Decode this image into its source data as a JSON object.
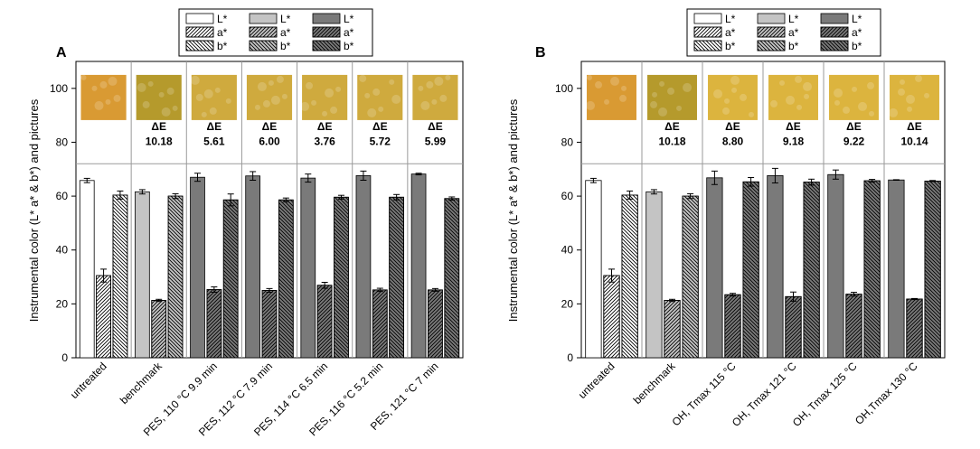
{
  "chart_data": [
    {
      "panel": "A",
      "type": "bar",
      "ylabel": "Instrumental color (L* a* & b*) and pictures",
      "ylim": [
        0,
        110
      ],
      "yticks": [
        0,
        20,
        40,
        60,
        80,
        100
      ],
      "grid": false,
      "legend": {
        "columns": [
          {
            "fill": "white",
            "labels": [
              "L*",
              "a*",
              "b*"
            ]
          },
          {
            "fill": "light-gray",
            "labels": [
              "L*",
              "a*",
              "b*"
            ]
          },
          {
            "fill": "dark-gray",
            "labels": [
              "L*",
              "a*",
              "b*"
            ]
          }
        ]
      },
      "categories": [
        "untreated",
        "benchmark",
        "PES, 110 °C 9.9 min",
        "PES, 112 °C 7.9 min",
        "PES, 114 °C 6.5 min",
        "PES, 116 °C 5.2 min",
        "PES, 121 °C 7 min"
      ],
      "groups": [
        "untreated",
        "benchmark",
        "treated",
        "treated",
        "treated",
        "treated",
        "treated"
      ],
      "series": [
        {
          "name": "L*",
          "values": [
            65.8,
            61.6,
            67.0,
            67.5,
            66.7,
            67.6,
            68.2
          ],
          "errors": [
            0.8,
            0.8,
            1.5,
            1.6,
            1.5,
            1.7,
            0.3
          ]
        },
        {
          "name": "a*",
          "values": [
            30.5,
            21.3,
            25.3,
            25.0,
            26.9,
            25.2,
            25.2
          ],
          "errors": [
            2.4,
            0.4,
            1.0,
            0.7,
            1.1,
            0.6,
            0.5
          ]
        },
        {
          "name": "b*",
          "values": [
            60.4,
            60.0,
            58.6,
            58.6,
            59.6,
            59.6,
            59.1
          ],
          "errors": [
            1.5,
            0.9,
            2.2,
            0.7,
            0.7,
            1.0,
            0.6
          ]
        }
      ],
      "delta_e_label": "ΔE",
      "delta_e": [
        "",
        "10.18",
        "5.61",
        "6.00",
        "3.76",
        "5.72",
        "5.99"
      ]
    },
    {
      "panel": "B",
      "type": "bar",
      "ylabel": "Instrumental color (L* a* & b*) and pictures",
      "ylim": [
        0,
        110
      ],
      "yticks": [
        0,
        20,
        40,
        60,
        80,
        100
      ],
      "grid": false,
      "legend": {
        "columns": [
          {
            "fill": "white",
            "labels": [
              "L*",
              "a*",
              "b*"
            ]
          },
          {
            "fill": "light-gray",
            "labels": [
              "L*",
              "a*",
              "b*"
            ]
          },
          {
            "fill": "dark-gray",
            "labels": [
              "L*",
              "a*",
              "b*"
            ]
          }
        ]
      },
      "categories": [
        "untreated",
        "benchmark",
        "OH, Tmax 115 °C",
        "OH, Tmax 121 °C",
        "OH, Tmax 125 °C",
        "OH,Tmax 130 °C"
      ],
      "groups": [
        "untreated",
        "benchmark",
        "treated",
        "treated",
        "treated",
        "treated"
      ],
      "series": [
        {
          "name": "L*",
          "values": [
            65.8,
            61.6,
            66.8,
            67.6,
            68.0,
            66.0
          ],
          "errors": [
            0.8,
            0.8,
            2.5,
            2.7,
            1.7,
            0.1
          ]
        },
        {
          "name": "a*",
          "values": [
            30.5,
            21.3,
            23.4,
            22.7,
            23.6,
            21.8
          ],
          "errors": [
            2.4,
            0.4,
            0.5,
            1.7,
            0.7,
            0.2
          ]
        },
        {
          "name": "b*",
          "values": [
            60.4,
            60.0,
            65.3,
            65.2,
            65.7,
            65.6
          ],
          "errors": [
            1.5,
            0.9,
            1.6,
            1.1,
            0.5,
            0.2
          ]
        }
      ],
      "delta_e_label": "ΔE",
      "delta_e": [
        "",
        "10.18",
        "8.80",
        "9.18",
        "9.22",
        "10.14"
      ]
    }
  ],
  "colors": {
    "untreated": "#ffffff",
    "benchmark": "#c4c4c4",
    "treated": "#7a7a7a",
    "stroke": "#000000",
    "divider": "#9a9a9a",
    "photos": {
      "untreated": "#d99a33",
      "benchmark": "#b59a2c",
      "pes": "#cfaa3e",
      "oh": "#dcb43e"
    }
  }
}
